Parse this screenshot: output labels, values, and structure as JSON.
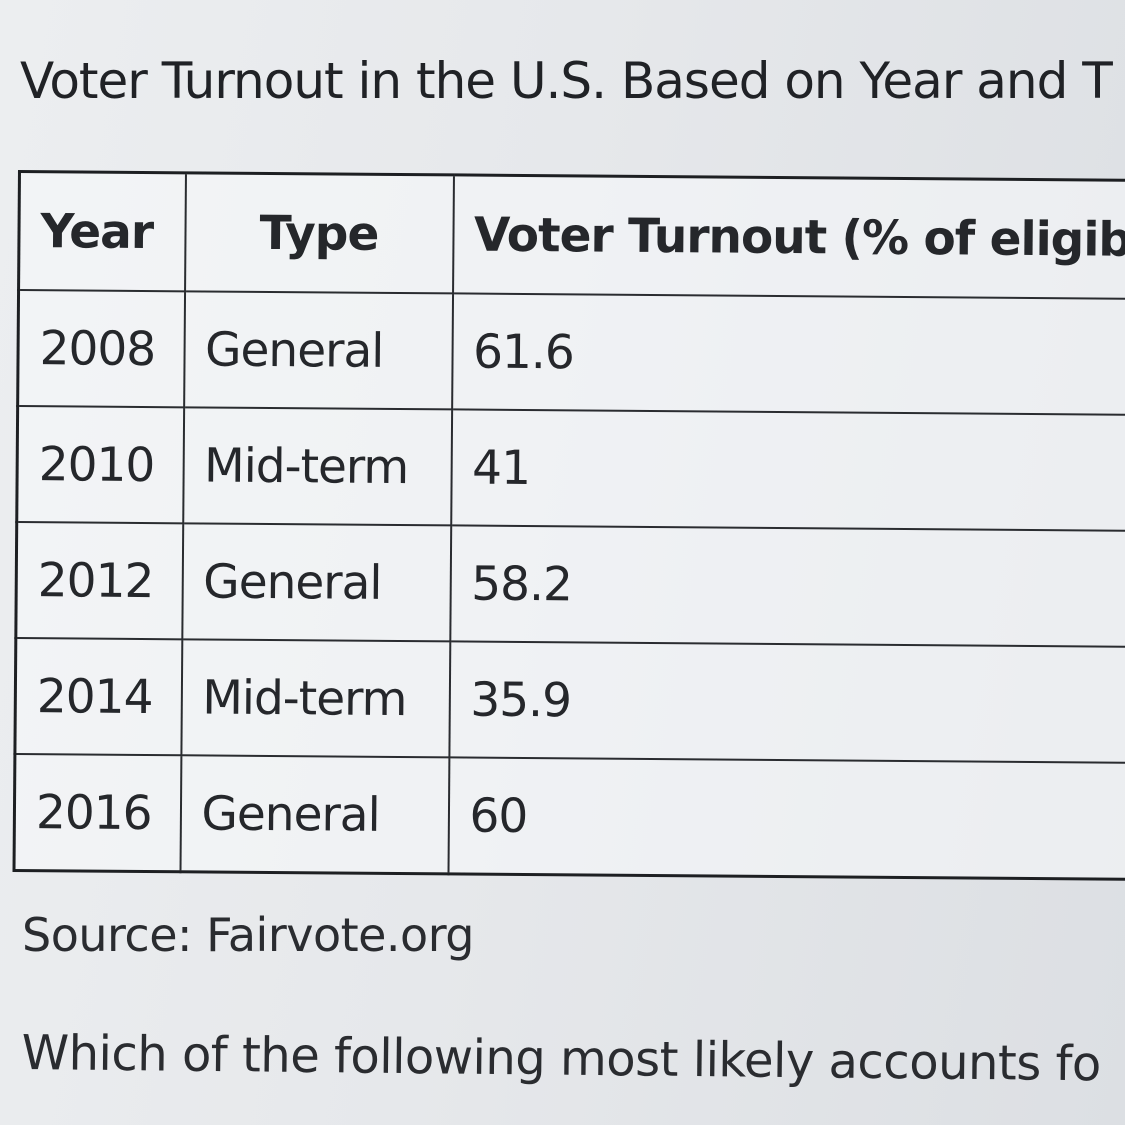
{
  "title": "Voter Turnout in the U.S. Based on Year and T",
  "table": {
    "headers": [
      "Year",
      "Type",
      "Voter Turnout (% of eligib"
    ],
    "rows": [
      {
        "year": "2008",
        "type": "General",
        "turnout": "61.6"
      },
      {
        "year": "2010",
        "type": "Mid-term",
        "turnout": "41"
      },
      {
        "year": "2012",
        "type": "General",
        "turnout": "58.2"
      },
      {
        "year": "2014",
        "type": "Mid-term",
        "turnout": "35.9"
      },
      {
        "year": "2016",
        "type": "General",
        "turnout": "60"
      }
    ]
  },
  "source": "Source: Fairvote.org",
  "question": "Which of the following most likely accounts fo"
}
